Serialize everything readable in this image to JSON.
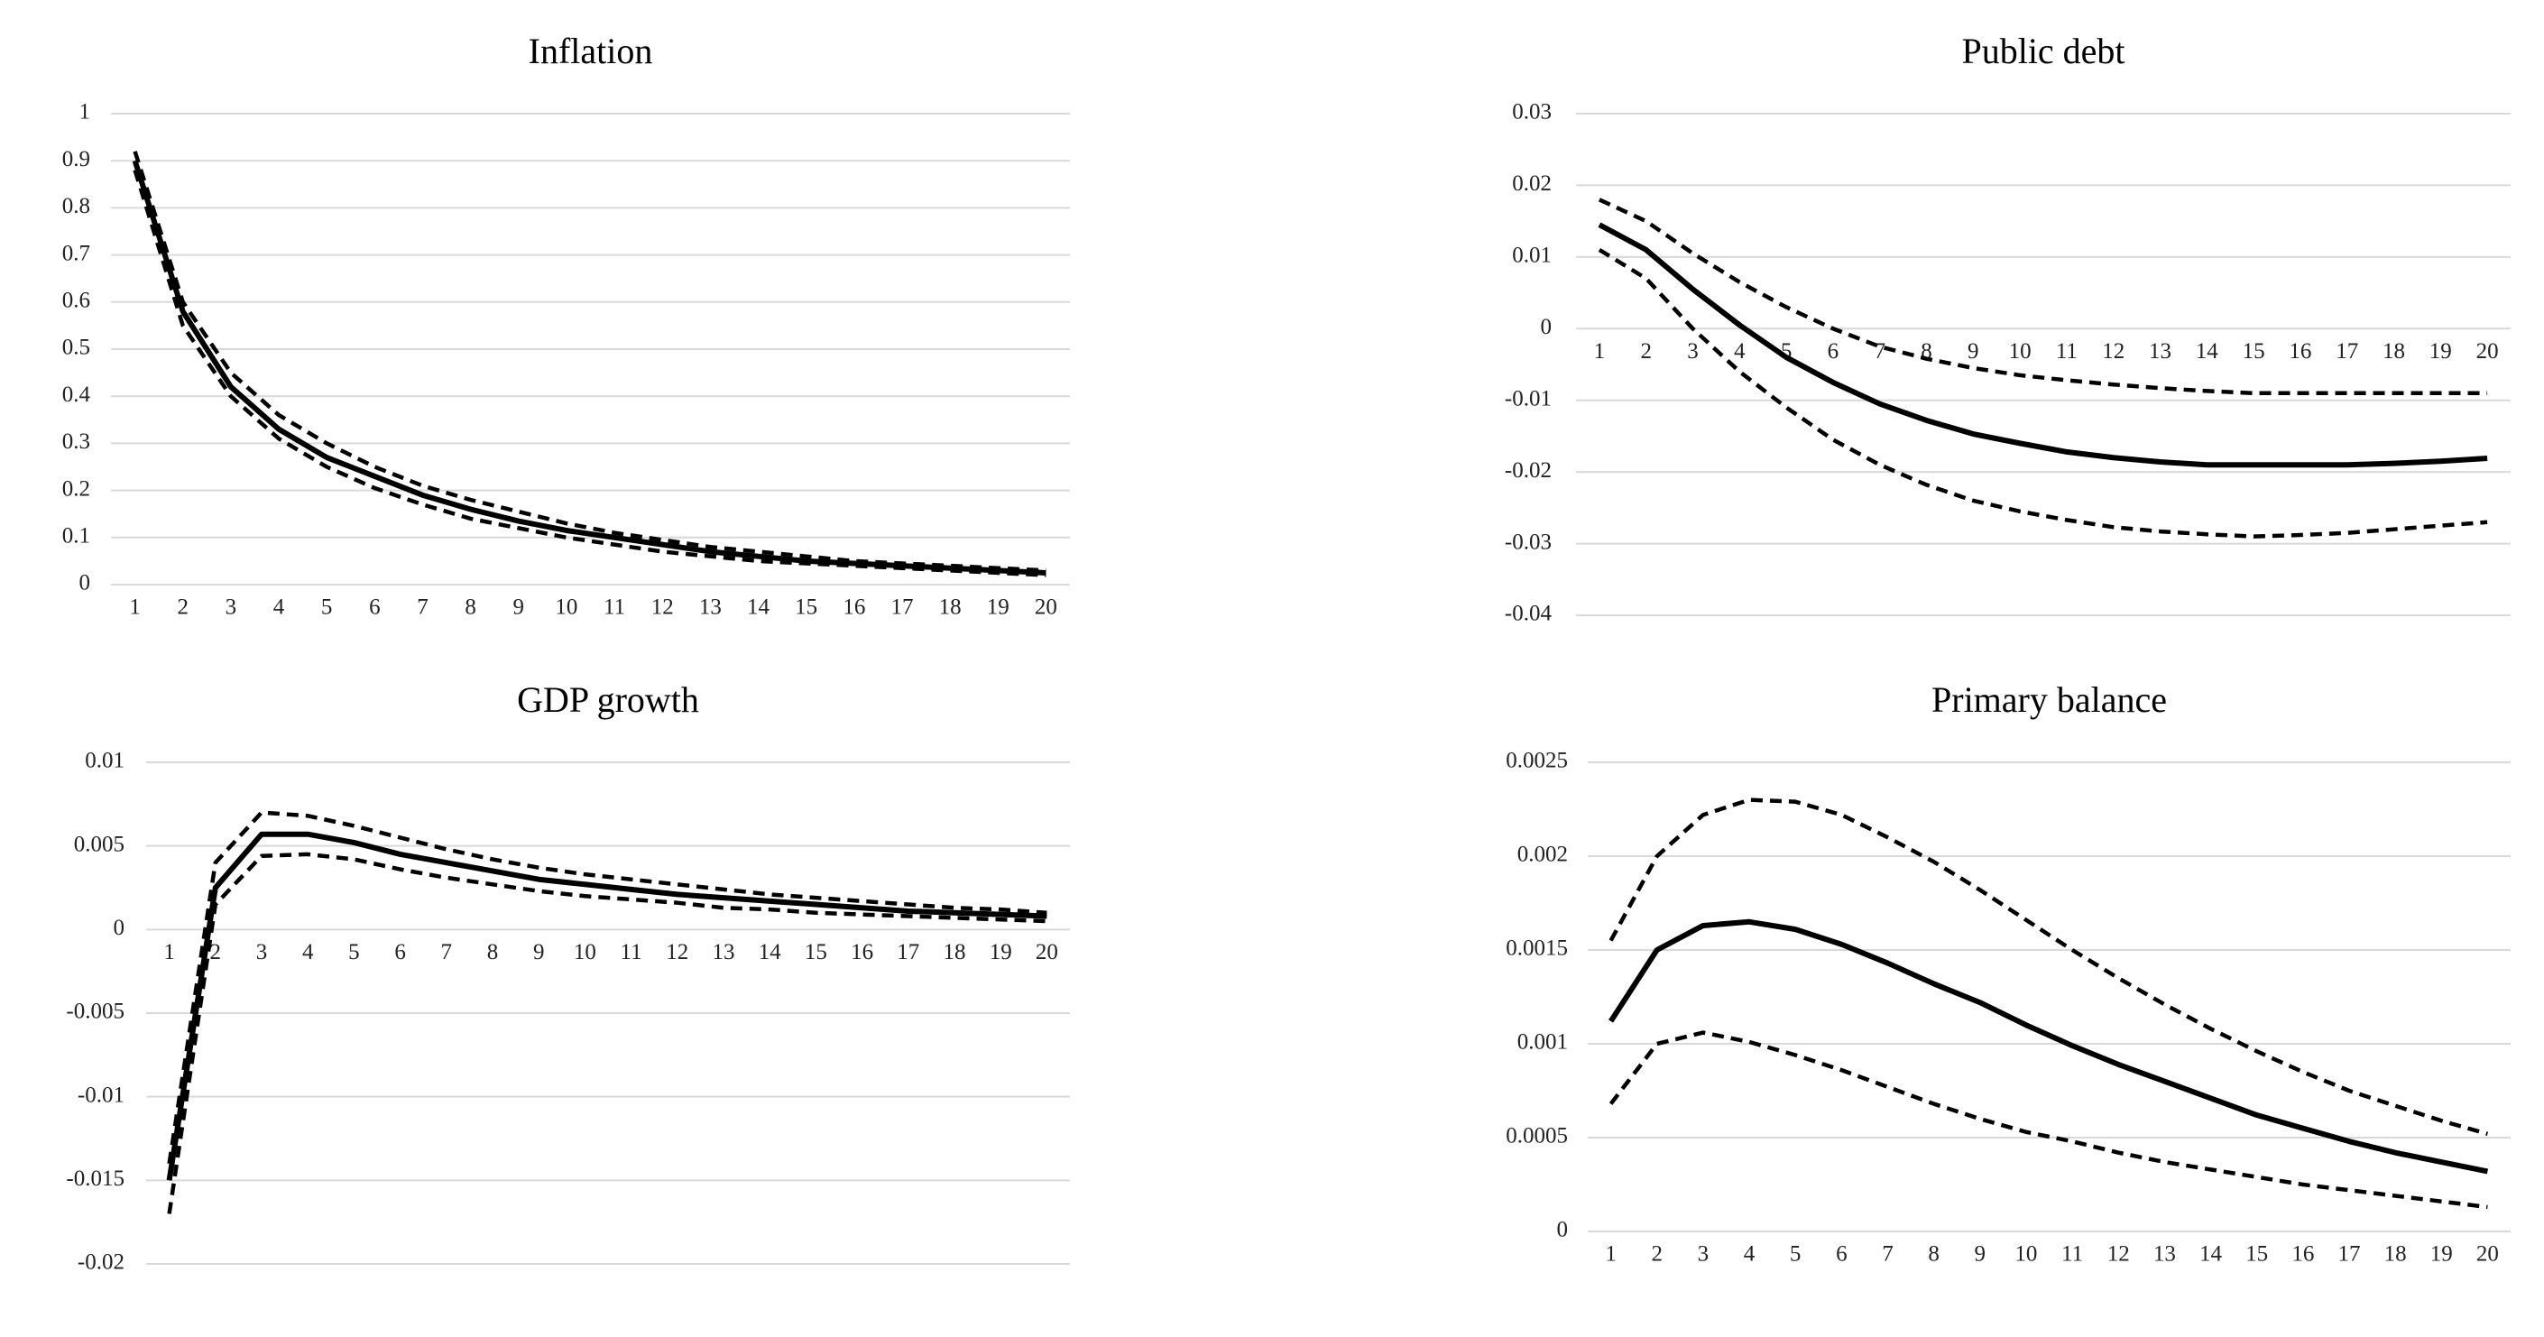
{
  "chart_data": [
    {
      "type": "line",
      "title": "Inflation",
      "categories": [
        "1",
        "2",
        "3",
        "4",
        "5",
        "6",
        "7",
        "8",
        "9",
        "10",
        "11",
        "12",
        "13",
        "14",
        "15",
        "16",
        "17",
        "18",
        "19",
        "20"
      ],
      "ylim": [
        0,
        1
      ],
      "yticks": [
        0,
        0.1,
        0.2,
        0.3,
        0.4,
        0.5,
        0.6,
        0.7,
        0.8,
        0.9,
        1
      ],
      "grid": true,
      "series": [
        {
          "color": "#000000",
          "style": "solid",
          "values": [
            0.9,
            0.58,
            0.42,
            0.33,
            0.27,
            0.23,
            0.19,
            0.16,
            0.135,
            0.115,
            0.1,
            0.085,
            0.07,
            0.06,
            0.05,
            0.045,
            0.04,
            0.035,
            0.03,
            0.025
          ]
        },
        {
          "color": "#000000",
          "style": "dashed",
          "values": [
            0.92,
            0.6,
            0.45,
            0.36,
            0.3,
            0.25,
            0.21,
            0.18,
            0.155,
            0.13,
            0.11,
            0.095,
            0.08,
            0.07,
            0.06,
            0.05,
            0.045,
            0.04,
            0.035,
            0.03
          ]
        },
        {
          "color": "#000000",
          "style": "dashed",
          "values": [
            0.88,
            0.55,
            0.4,
            0.31,
            0.25,
            0.205,
            0.17,
            0.14,
            0.12,
            0.1,
            0.085,
            0.07,
            0.06,
            0.05,
            0.045,
            0.04,
            0.035,
            0.03,
            0.025,
            0.02
          ]
        }
      ]
    },
    {
      "type": "line",
      "title": "Public debt",
      "categories": [
        "1",
        "2",
        "3",
        "4",
        "5",
        "6",
        "7",
        "8",
        "9",
        "10",
        "11",
        "12",
        "13",
        "14",
        "15",
        "16",
        "17",
        "18",
        "19",
        "20"
      ],
      "ylim": [
        -0.04,
        0.03
      ],
      "yticks": [
        -0.04,
        -0.03,
        -0.02,
        -0.01,
        0,
        0.01,
        0.02,
        0.03
      ],
      "grid": true,
      "series": [
        {
          "color": "#000000",
          "style": "solid",
          "values": [
            0.0145,
            0.011,
            0.0055,
            0.0005,
            -0.004,
            -0.0075,
            -0.0105,
            -0.0128,
            -0.0147,
            -0.016,
            -0.0172,
            -0.018,
            -0.0186,
            -0.019,
            -0.019,
            -0.019,
            -0.019,
            -0.0188,
            -0.0185,
            -0.0181
          ]
        },
        {
          "color": "#000000",
          "style": "dashed",
          "values": [
            0.018,
            0.015,
            0.0105,
            0.0065,
            0.003,
            0,
            -0.0025,
            -0.0042,
            -0.0055,
            -0.0065,
            -0.0072,
            -0.0078,
            -0.0083,
            -0.0087,
            -0.009,
            -0.009,
            -0.009,
            -0.009,
            -0.009,
            -0.009
          ]
        },
        {
          "color": "#000000",
          "style": "dashed",
          "values": [
            0.011,
            0.007,
            0,
            -0.006,
            -0.011,
            -0.0155,
            -0.019,
            -0.0218,
            -0.024,
            -0.0255,
            -0.0267,
            -0.0277,
            -0.0283,
            -0.0287,
            -0.029,
            -0.0288,
            -0.0285,
            -0.028,
            -0.0275,
            -0.027
          ]
        }
      ]
    },
    {
      "type": "line",
      "title": "GDP growth",
      "categories": [
        "1",
        "2",
        "3",
        "4",
        "5",
        "6",
        "7",
        "8",
        "9",
        "10",
        "11",
        "12",
        "13",
        "14",
        "15",
        "16",
        "17",
        "18",
        "19",
        "20"
      ],
      "ylim": [
        -0.02,
        0.01
      ],
      "yticks": [
        -0.02,
        -0.015,
        -0.01,
        -0.005,
        0,
        0.005,
        0.01
      ],
      "grid": true,
      "series": [
        {
          "color": "#000000",
          "style": "solid",
          "values": [
            -0.015,
            0.0025,
            0.0057,
            0.0057,
            0.0052,
            0.0045,
            0.004,
            0.0035,
            0.003,
            0.0027,
            0.0024,
            0.0021,
            0.0019,
            0.0017,
            0.0015,
            0.0013,
            0.0011,
            0.001,
            0.0009,
            0.0008
          ]
        },
        {
          "color": "#000000",
          "style": "dashed",
          "values": [
            -0.014,
            0.004,
            0.007,
            0.0068,
            0.0062,
            0.0055,
            0.0048,
            0.0042,
            0.0037,
            0.0033,
            0.003,
            0.0027,
            0.0024,
            0.0021,
            0.0019,
            0.0017,
            0.0015,
            0.0013,
            0.0012,
            0.001
          ]
        },
        {
          "color": "#000000",
          "style": "dashed",
          "values": [
            -0.017,
            0.0015,
            0.0044,
            0.0045,
            0.0042,
            0.0036,
            0.0031,
            0.0027,
            0.0023,
            0.002,
            0.0018,
            0.0016,
            0.0013,
            0.0012,
            0.001,
            0.0009,
            0.0008,
            0.0007,
            0.0006,
            0.0005
          ]
        }
      ]
    },
    {
      "type": "line",
      "title": "Primary balance",
      "categories": [
        "1",
        "2",
        "3",
        "4",
        "5",
        "6",
        "7",
        "8",
        "9",
        "10",
        "11",
        "12",
        "13",
        "14",
        "15",
        "16",
        "17",
        "18",
        "19",
        "20"
      ],
      "ylim": [
        0,
        0.0025
      ],
      "yticks": [
        0,
        0.0005,
        0.001,
        0.0015,
        0.002,
        0.0025
      ],
      "grid": true,
      "series": [
        {
          "color": "#000000",
          "style": "solid",
          "values": [
            0.00112,
            0.0015,
            0.00163,
            0.00165,
            0.00161,
            0.00153,
            0.00143,
            0.00132,
            0.00122,
            0.0011,
            0.00099,
            0.00089,
            0.0008,
            0.00071,
            0.00062,
            0.00055,
            0.00048,
            0.00042,
            0.00037,
            0.00032
          ]
        },
        {
          "color": "#000000",
          "style": "dashed",
          "values": [
            0.00155,
            0.002,
            0.00222,
            0.0023,
            0.00229,
            0.00222,
            0.0021,
            0.00197,
            0.00182,
            0.00166,
            0.0015,
            0.00135,
            0.00121,
            0.00108,
            0.00096,
            0.00085,
            0.00075,
            0.00067,
            0.00059,
            0.00052
          ]
        },
        {
          "color": "#000000",
          "style": "dashed",
          "values": [
            0.00068,
            0.001,
            0.00106,
            0.00101,
            0.00094,
            0.00086,
            0.00077,
            0.00068,
            0.0006,
            0.00053,
            0.00048,
            0.00042,
            0.00037,
            0.00033,
            0.00029,
            0.00025,
            0.00022,
            0.00019,
            0.00016,
            0.00013
          ]
        }
      ]
    }
  ]
}
